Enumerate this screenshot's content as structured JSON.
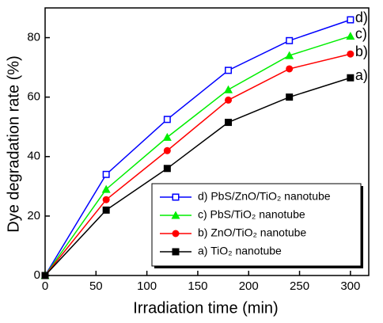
{
  "chart_data": {
    "type": "line",
    "x_label": "Irradiation time (min)",
    "y_label": "Dye degradation rate (%)",
    "x": [
      0,
      60,
      120,
      180,
      240,
      300
    ],
    "series": [
      {
        "name": "d) PbS/ZnO/TiO₂ nanotube",
        "label": "d)",
        "color": "#0000ff",
        "marker": "open-square",
        "values": [
          0,
          34,
          52.5,
          69,
          79,
          86
        ]
      },
      {
        "name": "c) PbS/TiO₂ nanotube",
        "label": "c)",
        "color": "#00ee00",
        "marker": "triangle",
        "values": [
          0,
          29,
          46.5,
          62.5,
          74,
          80.5
        ]
      },
      {
        "name": "b) ZnO/TiO₂ nanotube",
        "label": "b)",
        "color": "#ff0000",
        "marker": "circle",
        "values": [
          0,
          25.5,
          42,
          59,
          69.5,
          74.5
        ]
      },
      {
        "name": "a) TiO₂ nanotube",
        "label": "a)",
        "color": "#000000",
        "marker": "square",
        "values": [
          0,
          22,
          36,
          51.5,
          60,
          66.5
        ]
      }
    ],
    "xlim": [
      0,
      318
    ],
    "ylim": [
      0,
      90
    ],
    "xticks": [
      0,
      50,
      100,
      150,
      200,
      250,
      300
    ],
    "yticks": [
      0,
      20,
      40,
      60,
      80
    ],
    "legend": "lower right"
  }
}
